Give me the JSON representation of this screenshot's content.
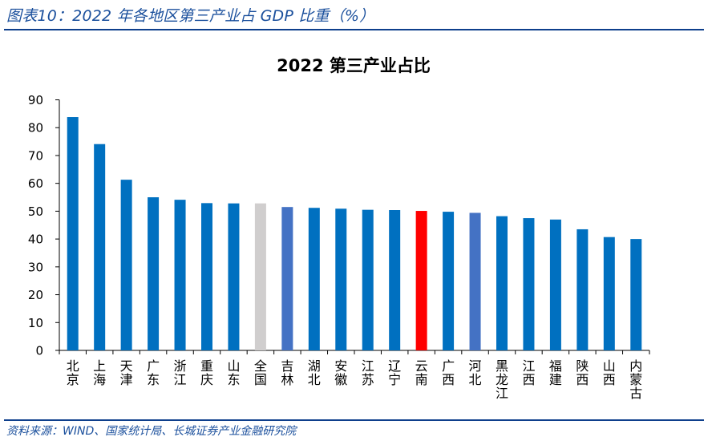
{
  "header": {
    "figure_title": "图表10：2022 年各地区第三产业占 GDP 比重（%）"
  },
  "footer": {
    "source": "资料来源：WIND、国家统计局、长城证券产业金融研究院"
  },
  "colors": {
    "default_bar": "#0070c0",
    "national_bar": "#d0cece",
    "highlight_bar": "#ff0000",
    "secondary_highlight_bar": "#4472c4",
    "rule": "#0e3f8c",
    "title_text": "#1a4f9c"
  },
  "chart_data": {
    "type": "bar",
    "title": "2022 第三产业占比",
    "xlabel": "",
    "ylabel": "",
    "ylim": [
      0,
      90
    ],
    "yticks": [
      0,
      10,
      20,
      30,
      40,
      50,
      60,
      70,
      80,
      90
    ],
    "grid": false,
    "legend": "none",
    "categories": [
      "北京",
      "上海",
      "天津",
      "广东",
      "浙江",
      "重庆",
      "山东",
      "全国",
      "吉林",
      "湖北",
      "安徽",
      "江苏",
      "辽宁",
      "云南",
      "广西",
      "河北",
      "黑龙江",
      "江西",
      "福建",
      "陕西",
      "山西",
      "内蒙古"
    ],
    "values": [
      83.8,
      74.1,
      61.3,
      55.0,
      54.1,
      52.9,
      52.8,
      52.8,
      51.5,
      51.2,
      50.9,
      50.5,
      50.4,
      50.1,
      49.8,
      49.4,
      48.2,
      47.5,
      47.0,
      43.5,
      40.7,
      40.0
    ],
    "bar_color_keys": [
      "default_bar",
      "default_bar",
      "default_bar",
      "default_bar",
      "default_bar",
      "default_bar",
      "default_bar",
      "national_bar",
      "secondary_highlight_bar",
      "default_bar",
      "default_bar",
      "default_bar",
      "default_bar",
      "highlight_bar",
      "default_bar",
      "secondary_highlight_bar",
      "default_bar",
      "default_bar",
      "default_bar",
      "default_bar",
      "default_bar",
      "default_bar"
    ]
  }
}
